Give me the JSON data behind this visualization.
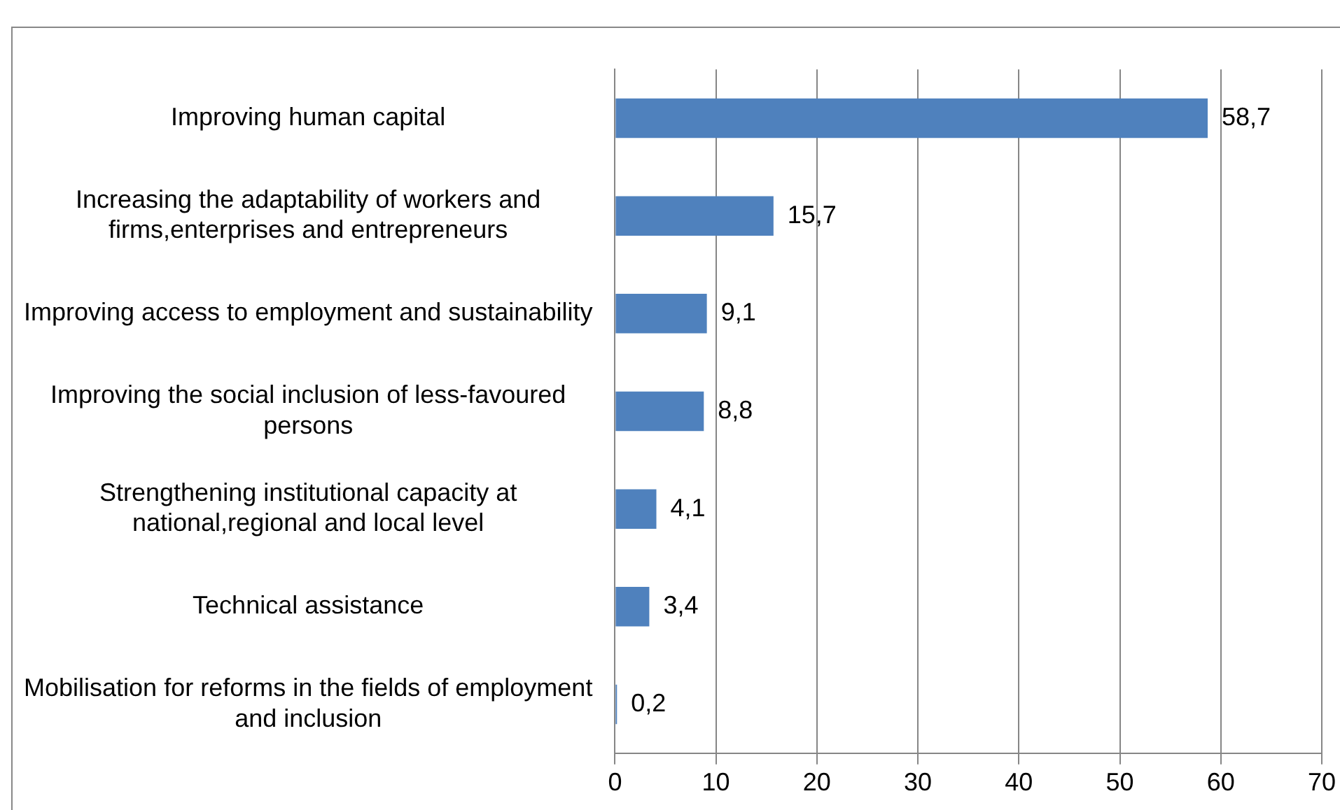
{
  "chart_data": {
    "type": "bar",
    "orientation": "horizontal",
    "categories": [
      "Improving human capital",
      "Increasing the adaptability of workers and firms,enterprises and entrepreneurs",
      "Improving access to employment and sustainability",
      "Improving the social inclusion of less-favoured persons",
      "Strengthening institutional capacity at national,regional and local level",
      "Technical assistance",
      "Mobilisation for reforms in the fields of employment and inclusion"
    ],
    "values": [
      58.7,
      15.7,
      9.1,
      8.8,
      4.1,
      3.4,
      0.2
    ],
    "value_labels": [
      "58,7",
      "15,7",
      "9,1",
      "8,8",
      "4,1",
      "3,4",
      "0,2"
    ],
    "color": "#4f81bd",
    "xlim": [
      0,
      70
    ],
    "xticks": [
      0,
      10,
      20,
      30,
      40,
      50,
      60,
      70
    ],
    "grid": "x",
    "legend": false
  }
}
